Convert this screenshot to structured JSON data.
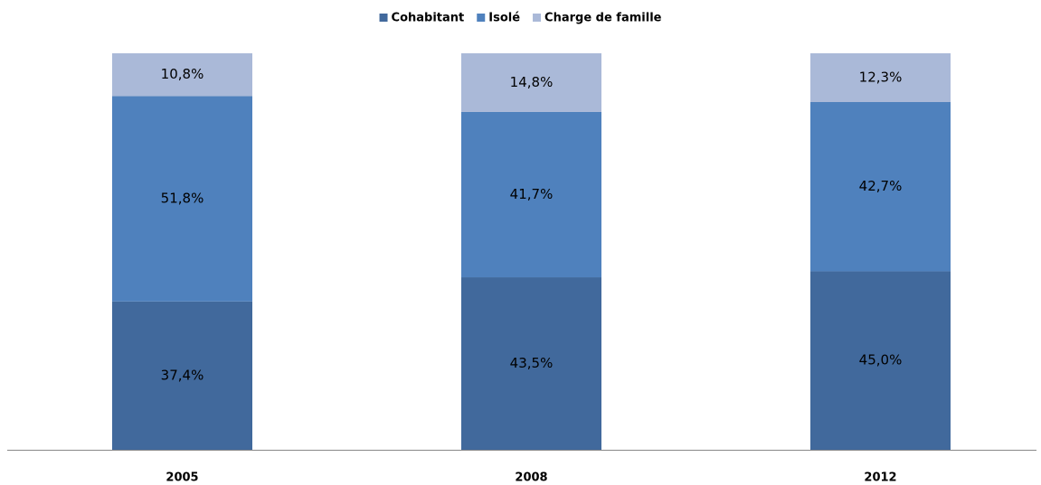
{
  "chart_data": {
    "type": "stacked-bar",
    "categories": [
      "2005",
      "2008",
      "2012"
    ],
    "series": [
      {
        "name": "Cohabitant",
        "color": "#41699c",
        "values": [
          37.4,
          43.5,
          45.0
        ],
        "value_labels": [
          "37,4%",
          "43,5%",
          "45,0%"
        ]
      },
      {
        "name": "Isolé",
        "color": "#4f81bd",
        "values": [
          51.8,
          41.7,
          42.7
        ],
        "value_labels": [
          "51,8%",
          "41,7%",
          "42,7%"
        ]
      },
      {
        "name": "Charge de famille",
        "color": "#aab9d8",
        "values": [
          10.8,
          14.8,
          12.3
        ],
        "value_labels": [
          "10,8%",
          "14,8%",
          "12,3%"
        ]
      }
    ],
    "legend": "top"
  }
}
